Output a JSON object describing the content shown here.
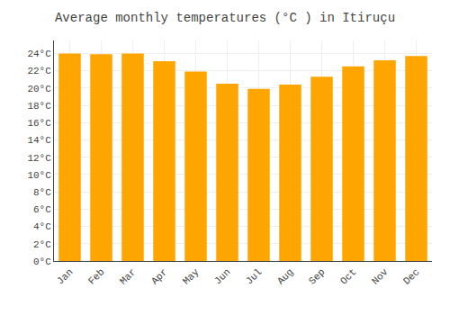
{
  "chart_data": {
    "type": "bar",
    "title": "Average monthly temperatures (°C ) in Itiruçu",
    "categories": [
      "Jan",
      "Feb",
      "Mar",
      "Apr",
      "May",
      "Jun",
      "Jul",
      "Aug",
      "Sep",
      "Oct",
      "Nov",
      "Dec"
    ],
    "values": [
      24.0,
      23.9,
      24.0,
      23.1,
      21.9,
      20.5,
      19.9,
      20.4,
      21.3,
      22.5,
      23.2,
      23.7
    ],
    "color": "#FFA500",
    "ylim": [
      0,
      25.5
    ],
    "yticks": [
      {
        "value": 0,
        "label": "0°C"
      },
      {
        "value": 2,
        "label": "2°C"
      },
      {
        "value": 4,
        "label": "4°C"
      },
      {
        "value": 6,
        "label": "6°C"
      },
      {
        "value": 8,
        "label": "8°C"
      },
      {
        "value": 10,
        "label": "10°C"
      },
      {
        "value": 12,
        "label": "12°C"
      },
      {
        "value": 14,
        "label": "14°C"
      },
      {
        "value": 16,
        "label": "16°C"
      },
      {
        "value": 18,
        "label": "18°C"
      },
      {
        "value": 20,
        "label": "20°C"
      },
      {
        "value": 22,
        "label": "22°C"
      },
      {
        "value": 24,
        "label": "24°C"
      }
    ],
    "grid": true
  }
}
